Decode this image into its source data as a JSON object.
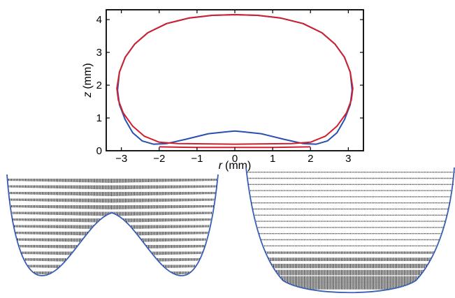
{
  "chart_data": [
    {
      "type": "line",
      "xlabel_var": "r",
      "xlabel_unit": "(mm)",
      "ylabel_var": "z",
      "ylabel_unit": "(mm)",
      "xlim": [
        -3.4,
        3.4
      ],
      "ylim": [
        0,
        4.3
      ],
      "xticks": [
        "−3",
        "−2",
        "−1",
        "0",
        "1",
        "2",
        "3"
      ],
      "xtick_values": [
        -3,
        -2,
        -1,
        0,
        1,
        2,
        3
      ],
      "yticks": [
        "0",
        "1",
        "2",
        "3",
        "4"
      ],
      "ytick_values": [
        0,
        1,
        2,
        3,
        4
      ],
      "grid": false,
      "series": [
        {
          "color": "#2b4fb0",
          "x": [
            -0.2,
            -0.7,
            -1.3,
            -1.8,
            -2.15,
            -2.45,
            -2.7,
            -2.9,
            -3.05,
            -3.1,
            -3.05,
            -2.9,
            -2.65,
            -2.3,
            -1.8,
            -1.2,
            -0.6,
            0,
            0.6,
            1.2,
            1.8,
            2.3,
            2.65,
            2.9,
            3.05,
            3.1,
            3.05,
            2.9,
            2.7,
            2.45,
            2.15,
            1.8,
            1.3,
            0.7,
            0.2,
            0,
            -0.2
          ],
          "y": [
            0.58,
            0.52,
            0.35,
            0.22,
            0.2,
            0.3,
            0.55,
            0.95,
            1.4,
            1.85,
            2.4,
            2.85,
            3.25,
            3.6,
            3.88,
            4.05,
            4.13,
            4.15,
            4.13,
            4.05,
            3.88,
            3.6,
            3.25,
            2.85,
            2.4,
            1.85,
            1.4,
            0.95,
            0.55,
            0.3,
            0.2,
            0.22,
            0.35,
            0.52,
            0.58,
            0.6,
            0.58
          ]
        },
        {
          "color": "#d0202e",
          "x": [
            -1.5,
            -2.0,
            -2.4,
            -2.7,
            -2.95,
            -3.08,
            -3.12,
            -3.05,
            -2.9,
            -2.65,
            -2.3,
            -1.8,
            -1.2,
            -0.6,
            0,
            0.6,
            1.2,
            1.8,
            2.3,
            2.65,
            2.9,
            3.05,
            3.12,
            3.08,
            2.95,
            2.7,
            2.4,
            2.0,
            1.5,
            0.8,
            0,
            -0.8,
            -1.5
          ],
          "y": [
            0.22,
            0.26,
            0.45,
            0.75,
            1.15,
            1.55,
            1.9,
            2.4,
            2.85,
            3.25,
            3.6,
            3.88,
            4.05,
            4.13,
            4.15,
            4.13,
            4.05,
            3.88,
            3.6,
            3.25,
            2.85,
            2.4,
            1.9,
            1.55,
            1.15,
            0.75,
            0.45,
            0.26,
            0.22,
            0.21,
            0.2,
            0.21,
            0.22
          ]
        },
        {
          "color": "#d0202e",
          "x": [
            -2.0,
            -1.0,
            0,
            1.0,
            2.0
          ],
          "y": [
            0.12,
            0.1,
            0.1,
            0.1,
            0.12
          ]
        }
      ]
    }
  ]
}
